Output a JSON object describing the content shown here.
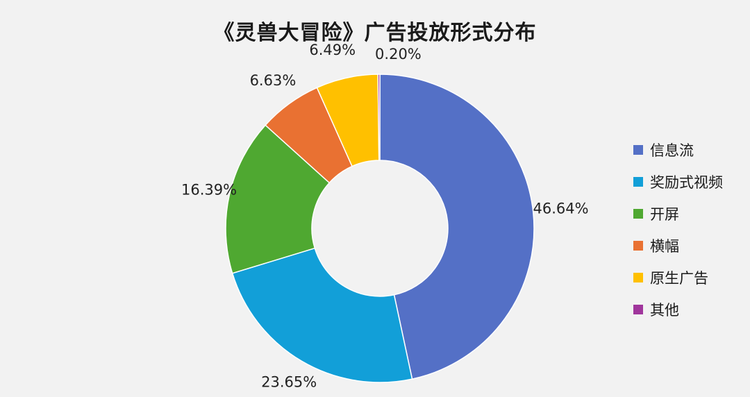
{
  "chart_data": {
    "type": "pie",
    "donut": true,
    "title": "《灵兽大冒险》广告投放形式分布",
    "legend_position": "right",
    "slices": [
      {
        "name": "信息流",
        "value": 46.64,
        "label": "46.64%",
        "color": "#5470c6"
      },
      {
        "name": "奖励式视频",
        "value": 23.65,
        "label": "23.65%",
        "color": "#129fd8"
      },
      {
        "name": "开屏",
        "value": 16.39,
        "label": "16.39%",
        "color": "#4fa831"
      },
      {
        "name": "横幅",
        "value": 6.63,
        "label": "6.63%",
        "color": "#e97132"
      },
      {
        "name": "原生广告",
        "value": 6.49,
        "label": "6.49%",
        "color": "#ffc000"
      },
      {
        "name": "其他",
        "value": 0.2,
        "label": "0.20%",
        "color": "#a0369c"
      }
    ]
  }
}
